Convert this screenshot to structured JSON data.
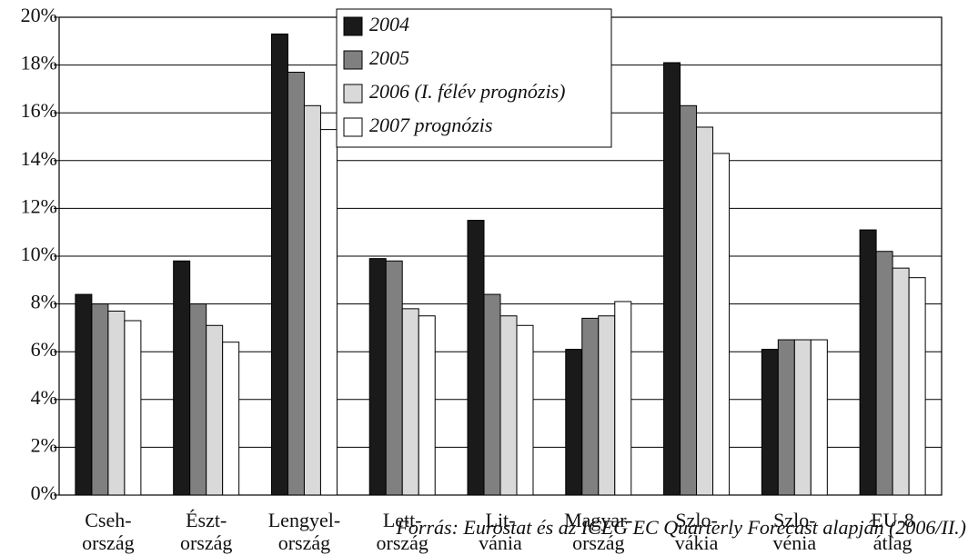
{
  "chart_data": {
    "type": "bar",
    "categories": [
      "Cseh-\nország",
      "Észt-\nország",
      "Lengyel-\nország",
      "Lett-\nország",
      "Lit-\nvánia",
      "Magyar-\nország",
      "Szlo-\nvákia",
      "Szlo-\nvénia",
      "EU-8\nátlag"
    ],
    "series": [
      {
        "name": "2004",
        "color": "#1a1a1a",
        "values": [
          8.4,
          9.8,
          19.3,
          9.9,
          11.5,
          6.1,
          18.1,
          6.1,
          11.1
        ]
      },
      {
        "name": "2005",
        "color": "#808080",
        "values": [
          8.0,
          8.0,
          17.7,
          9.8,
          8.4,
          7.4,
          16.3,
          6.5,
          10.2
        ]
      },
      {
        "name": "2006 (I. félév prognózis)",
        "color": "#d9d9d9",
        "values": [
          7.7,
          7.1,
          16.3,
          7.8,
          7.5,
          7.5,
          15.4,
          6.5,
          9.5
        ]
      },
      {
        "name": "2007 prognózis",
        "color": "#ffffff",
        "values": [
          7.3,
          6.4,
          15.3,
          7.5,
          7.1,
          8.1,
          14.3,
          6.5,
          9.1
        ]
      }
    ],
    "ylim": [
      0,
      20
    ],
    "yticks": [
      {
        "value": 0,
        "label": "0%"
      },
      {
        "value": 2,
        "label": "2%"
      },
      {
        "value": 4,
        "label": "4%"
      },
      {
        "value": 6,
        "label": "6%"
      },
      {
        "value": 8,
        "label": "8%"
      },
      {
        "value": 10,
        "label": "10%"
      },
      {
        "value": 12,
        "label": "12%"
      },
      {
        "value": 14,
        "label": "14%"
      },
      {
        "value": 16,
        "label": "16%"
      },
      {
        "value": 18,
        "label": "18%"
      },
      {
        "value": 20,
        "label": "20%"
      }
    ],
    "grid": true,
    "legend": "top",
    "source": "Forrás: Eurostat  és az ICEG EC Quarterly Forecast alapján (2006/II.)"
  }
}
